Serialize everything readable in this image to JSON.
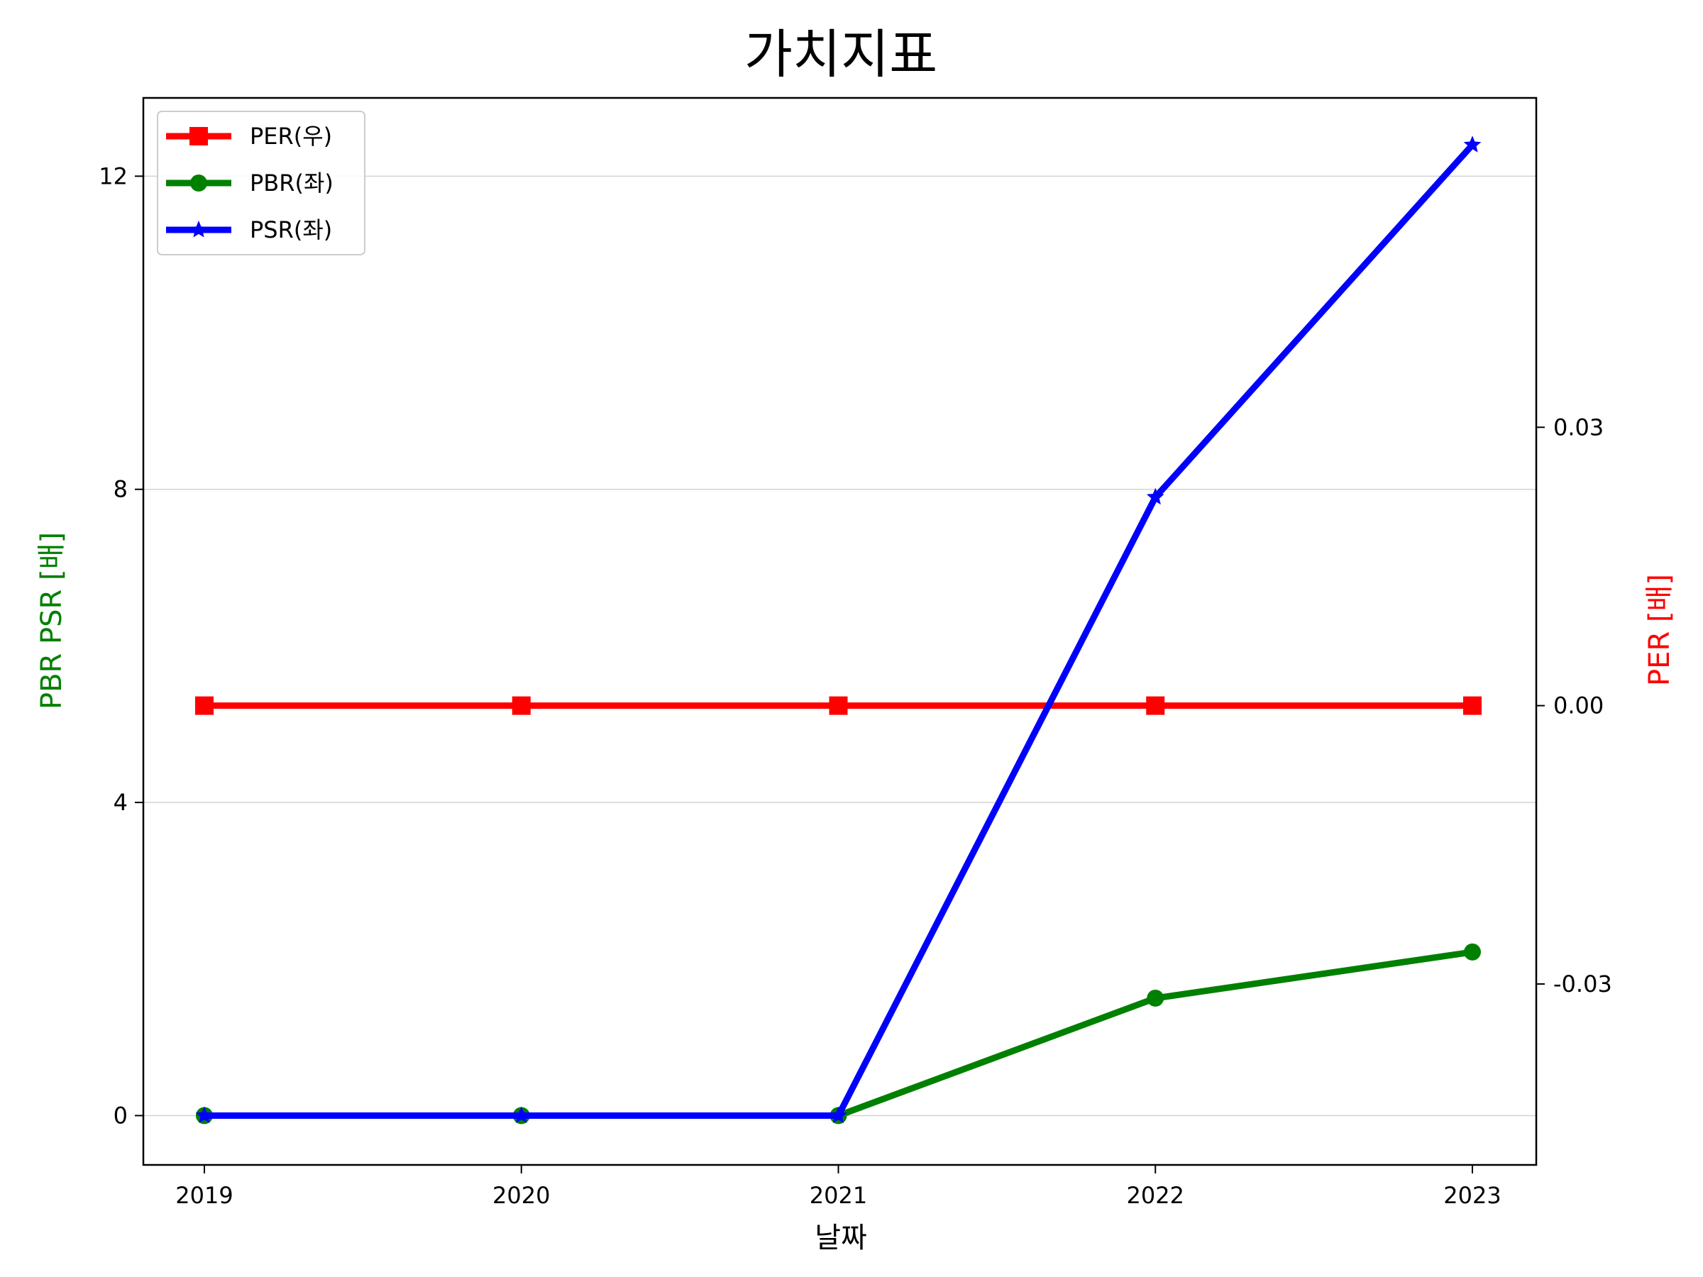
{
  "chart_data": {
    "type": "line",
    "title": "가치지표",
    "xlabel": "날짜",
    "ylabel_left": "PBR PSR [배]",
    "ylabel_right": "PER [배]",
    "categories": [
      "2019",
      "2020",
      "2021",
      "2022",
      "2023"
    ],
    "ylim_left": [
      -0.63,
      13.0
    ],
    "yticks_left": [
      0,
      4,
      8,
      12
    ],
    "yticks_left_labels": [
      "0",
      "4",
      "8",
      "12"
    ],
    "ylim_right": [
      -0.0495,
      0.0655
    ],
    "yticks_right": [
      -0.03,
      0.0,
      0.03
    ],
    "yticks_right_labels": [
      "-0.03",
      "0.00",
      "0.03"
    ],
    "grid": "horizontal",
    "legend": "top-left",
    "series": [
      {
        "name": "PER(우)",
        "axis": "right",
        "color": "#ff0000",
        "marker": "square",
        "values": [
          0,
          0,
          0,
          0,
          0
        ]
      },
      {
        "name": "PBR(좌)",
        "axis": "left",
        "color": "#008000",
        "marker": "circle",
        "values": [
          0,
          0,
          0,
          1.5,
          2.09
        ]
      },
      {
        "name": "PSR(좌)",
        "axis": "left",
        "color": "#0000ff",
        "marker": "star",
        "values": [
          0,
          0,
          0,
          7.9,
          12.4
        ]
      }
    ]
  }
}
